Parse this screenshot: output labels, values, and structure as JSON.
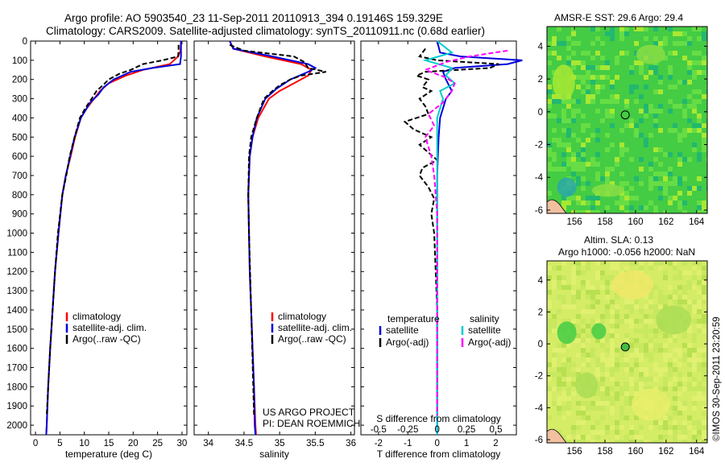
{
  "header": {
    "line1": "Argo profile: AO 5903540_23 11-Sep-2011 20110913_394 0.19146S 159.329E",
    "line2": "Climatology: CARS2009. Satellite-adjusted climatology: synTS_20110911.nc (0.68d earlier)"
  },
  "colors": {
    "climatology": "#ff0000",
    "satellite": "#0000dd",
    "argo": "#000000",
    "salinity_sat": "#00cccc",
    "salinity_argo": "#ff00ff",
    "sst_green": "#3fd03f",
    "sla_yellow": "#d8f060",
    "land": "#f0c0a0"
  },
  "chart_data": [
    {
      "id": "temperature",
      "type": "line",
      "xlabel": "temperature (deg C)",
      "ylabel": "",
      "xlim": [
        -1,
        31
      ],
      "ylim": [
        2050,
        0
      ],
      "xticks": [
        "0",
        "5",
        "10",
        "15",
        "20",
        "25",
        "30"
      ],
      "xtick_values": [
        0,
        5,
        10,
        15,
        20,
        25,
        30
      ],
      "yticks": [
        "0",
        "100",
        "200",
        "300",
        "400",
        "500",
        "600",
        "700",
        "800",
        "900",
        "1000",
        "1100",
        "1200",
        "1300",
        "1400",
        "1500",
        "1600",
        "1700",
        "1800",
        "1900",
        "2000"
      ],
      "ytick_values": [
        0,
        100,
        200,
        300,
        400,
        500,
        600,
        700,
        800,
        900,
        1000,
        1100,
        1200,
        1300,
        1400,
        1500,
        1600,
        1700,
        1800,
        1900,
        2000
      ],
      "legend": [
        "climatology",
        "satellite-adj. clim.",
        "Argo(..raw -QC)"
      ],
      "series": [
        {
          "name": "climatology",
          "color": "#ff0000",
          "dash": "",
          "depth": [
            0,
            50,
            80,
            120,
            150,
            180,
            220,
            260,
            300,
            350,
            400,
            500,
            600,
            700,
            800,
            1000,
            1200,
            1400,
            1600,
            1800,
            2000,
            2050
          ],
          "values": [
            29.8,
            29.7,
            29.2,
            27.5,
            22,
            18.5,
            15,
            13.2,
            12,
            10.5,
            9.3,
            8.1,
            7.2,
            6.2,
            5.5,
            4.7,
            4.0,
            3.5,
            3.0,
            2.6,
            2.3,
            2.2
          ]
        },
        {
          "name": "satellite",
          "color": "#0000dd",
          "dash": "",
          "depth": [
            0,
            50,
            80,
            120,
            140,
            160,
            200,
            240,
            280,
            320,
            400,
            500,
            600,
            700,
            800,
            1000,
            1200,
            1400,
            1600,
            1800,
            2000,
            2050
          ],
          "values": [
            29.8,
            29.8,
            29.8,
            29.6,
            24,
            19.5,
            16,
            14,
            12.8,
            11.2,
            9.3,
            8.0,
            7.1,
            6.2,
            5.5,
            4.7,
            4.0,
            3.5,
            3.0,
            2.6,
            2.3,
            2.2
          ]
        },
        {
          "name": "Argo",
          "color": "#000000",
          "dash": "6,3",
          "depth": [
            20,
            50,
            80,
            100,
            120,
            150,
            170,
            200,
            230,
            260,
            300,
            350,
            400,
            500,
            600,
            700,
            800,
            1000,
            1200,
            1400,
            1600,
            1800,
            1950
          ],
          "values": [
            29.3,
            29.3,
            29.2,
            26,
            22,
            19.5,
            17.2,
            15.0,
            13.8,
            12.5,
            11.5,
            10.2,
            9.1,
            8.0,
            7.0,
            6.3,
            5.5,
            4.6,
            4.0,
            3.5,
            3.0,
            2.6,
            2.3
          ]
        }
      ]
    },
    {
      "id": "salinity",
      "type": "line",
      "xlabel": "salinity",
      "xlim": [
        33.8,
        36.05
      ],
      "ylim": [
        2050,
        0
      ],
      "xticks": [
        "34",
        "34.5",
        "35",
        "35.5",
        "36"
      ],
      "xtick_values": [
        34,
        34.5,
        35,
        35.5,
        36
      ],
      "legend": [
        "climatology",
        "satellite-adj. clim.",
        "Argo(..raw -QC)"
      ],
      "annotation": [
        "US ARGO PROJECT",
        "PI: DEAN ROEMMICH"
      ],
      "series": [
        {
          "name": "climatology",
          "color": "#ff0000",
          "dash": "",
          "depth": [
            0,
            40,
            80,
            120,
            150,
            180,
            220,
            260,
            300,
            400,
            500,
            600,
            800,
            1000,
            1200,
            1400,
            1600,
            1800,
            2000,
            2050
          ],
          "values": [
            34.3,
            34.35,
            34.8,
            35.3,
            35.45,
            35.4,
            35.2,
            35.0,
            34.85,
            34.7,
            34.62,
            34.58,
            34.56,
            34.57,
            34.58,
            34.6,
            34.62,
            34.64,
            34.66,
            34.67
          ]
        },
        {
          "name": "satellite",
          "color": "#0000dd",
          "dash": "",
          "depth": [
            0,
            40,
            80,
            120,
            140,
            160,
            200,
            250,
            300,
            400,
            500,
            600,
            800,
            1000,
            1200,
            1400,
            1600,
            1800,
            2000,
            2050
          ],
          "values": [
            34.3,
            34.35,
            34.9,
            35.4,
            35.5,
            35.4,
            35.15,
            34.95,
            34.8,
            34.68,
            34.62,
            34.58,
            34.56,
            34.57,
            34.58,
            34.6,
            34.62,
            34.64,
            34.65,
            34.66
          ]
        },
        {
          "name": "Argo",
          "color": "#000000",
          "dash": "6,3",
          "depth": [
            20,
            50,
            80,
            110,
            140,
            160,
            180,
            200,
            230,
            260,
            300,
            400,
            500,
            600,
            800,
            1000,
            1400,
            1800,
            1950
          ],
          "values": [
            34.3,
            34.5,
            35.2,
            35.35,
            35.4,
            35.65,
            35.3,
            35.15,
            35.0,
            34.9,
            34.78,
            34.68,
            34.6,
            34.57,
            34.56,
            34.57,
            34.6,
            34.63,
            34.64
          ]
        }
      ]
    },
    {
      "id": "difference",
      "type": "line",
      "xlabel": "T difference from climatology",
      "xlabel2": "S difference from climatology",
      "xlim": [
        -2.6,
        2.7
      ],
      "ylim": [
        2050,
        0
      ],
      "xticks": [
        "-2",
        "-1",
        "0",
        "1",
        "2"
      ],
      "xtick_values": [
        -2,
        -1,
        0,
        1,
        2
      ],
      "sticks": [
        "-0.5",
        "-0.25",
        "0",
        "0.25",
        "0.5"
      ],
      "stick_values": [
        -2,
        -1,
        0,
        1,
        2
      ],
      "legend_temp_title": "temperature",
      "legend_sal_title": "salinity",
      "legend": [
        "satellite",
        "Argo(-adj)",
        "satellite",
        "Argo(-adj)"
      ],
      "series": [
        {
          "name": "T satellite",
          "color": "#0000dd",
          "dash": "",
          "depth": [
            0,
            60,
            80,
            100,
            120,
            140,
            160,
            200,
            260,
            300,
            400,
            500,
            700,
            1000,
            1500,
            2000,
            2050
          ],
          "values": [
            0.0,
            0.1,
            0.8,
            2.9,
            2.4,
            0.6,
            0.2,
            0.3,
            0.5,
            0.3,
            0.1,
            0.05,
            0.0,
            0.0,
            0.0,
            0.0,
            0.0
          ]
        },
        {
          "name": "T Argo",
          "color": "#000000",
          "dash": "6,3",
          "depth": [
            40,
            80,
            100,
            120,
            140,
            160,
            180,
            200,
            240,
            260,
            300,
            340,
            380,
            420,
            460,
            500,
            540,
            580,
            620,
            660,
            700,
            760,
            820,
            900,
            1000,
            1400,
            1950
          ],
          "values": [
            -0.4,
            -0.6,
            0.0,
            2.1,
            1.8,
            -0.4,
            -0.7,
            -0.3,
            -0.5,
            -0.2,
            -0.6,
            -0.4,
            -0.3,
            -1.1,
            -0.8,
            -0.2,
            -0.6,
            -0.3,
            0.0,
            -0.5,
            -0.6,
            -0.3,
            -0.1,
            -0.2,
            -0.1,
            0.0,
            0.0
          ]
        },
        {
          "name": "S satellite",
          "color": "#00cccc",
          "dash": "",
          "depth": [
            0,
            60,
            100,
            140,
            180,
            220,
            260,
            300,
            400,
            600,
            1000,
            1500,
            2000,
            2050
          ],
          "values": [
            0.0,
            0.5,
            -0.4,
            0.5,
            0.3,
            0.6,
            0.1,
            0.2,
            0.0,
            0.0,
            0.0,
            0.0,
            0.0,
            0.0
          ]
        },
        {
          "name": "S Argo",
          "color": "#ff00ff",
          "dash": "6,3",
          "depth": [
            50,
            80,
            110,
            150,
            190,
            220,
            260,
            320,
            380,
            440,
            500,
            600,
            700,
            900,
            1100,
            1400,
            1950
          ],
          "values": [
            2.4,
            1.1,
            0.3,
            -0.4,
            0.3,
            0.6,
            0.5,
            0.2,
            -0.3,
            -0.1,
            -0.4,
            -0.2,
            -0.1,
            0.0,
            0.0,
            0.0,
            0.0
          ]
        }
      ]
    },
    {
      "id": "sst-map",
      "type": "heatmap",
      "title": "AMSR-E SST: 29.6 Argo: 29.4",
      "xlim": [
        154.2,
        164.7
      ],
      "ylim": [
        -6.2,
        5.2
      ],
      "xticks": [
        "156",
        "158",
        "160",
        "162",
        "164"
      ],
      "xtick_values": [
        156,
        158,
        160,
        162,
        164
      ],
      "yticks": [
        "4",
        "2",
        "0",
        "-2",
        "-4",
        "-6"
      ],
      "ytick_values": [
        4,
        2,
        0,
        -2,
        -4,
        -6
      ],
      "argo_position": [
        159.329,
        -0.19146
      ]
    },
    {
      "id": "sla-map",
      "type": "heatmap",
      "title": "Altim. SLA: 0.13",
      "subtitle": "Argo h1000: -0.056 h2000: NaN",
      "xlim": [
        154.2,
        164.7
      ],
      "ylim": [
        -6.2,
        5.2
      ],
      "xticks": [
        "156",
        "158",
        "160",
        "162",
        "164"
      ],
      "xtick_values": [
        156,
        158,
        160,
        162,
        164
      ],
      "yticks": [
        "4",
        "2",
        "0",
        "-2",
        "-4",
        "-6"
      ],
      "ytick_values": [
        4,
        2,
        0,
        -2,
        -4,
        -6
      ],
      "argo_position": [
        159.329,
        -0.19146
      ]
    }
  ],
  "credit": "©IMOS 30-Sep-2011 23:20:59"
}
